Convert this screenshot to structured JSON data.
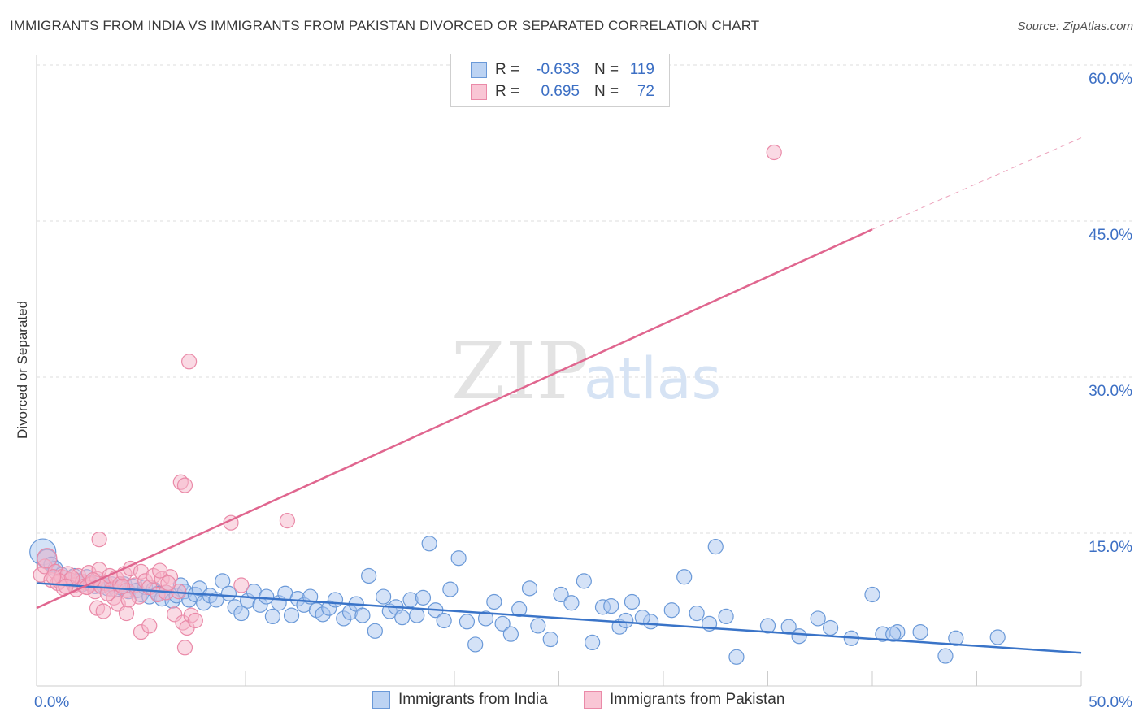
{
  "title": "IMMIGRANTS FROM INDIA VS IMMIGRANTS FROM PAKISTAN DIVORCED OR SEPARATED CORRELATION CHART",
  "source": "Source: ZipAtlas.com",
  "watermark": {
    "zip": "ZIP",
    "atlas": "atlas"
  },
  "legend": {
    "rows": [
      {
        "r_label": "R =",
        "r_value": "-0.633",
        "n_label": "N =",
        "n_value": "119"
      },
      {
        "r_label": "R =",
        "r_value": "0.695",
        "n_label": "N =",
        "n_value": "72"
      }
    ]
  },
  "colors": {
    "india_fill": "#a9c6ef",
    "india_stroke": "#6a99d8",
    "india_line": "#3a74c8",
    "pakistan_fill": "#f6b6c9",
    "pakistan_stroke": "#ea8aa8",
    "pakistan_line": "#e0668f",
    "tick_label": "#3c6fc4",
    "grid": "#dcdcdc"
  },
  "chart_data": {
    "type": "scatter",
    "title": "IMMIGRANTS FROM INDIA VS IMMIGRANTS FROM PAKISTAN DIVORCED OR SEPARATED CORRELATION CHART",
    "xlabel": "",
    "ylabel": "Divorced or Separated",
    "xlim": [
      0,
      50
    ],
    "ylim": [
      0,
      63
    ],
    "x_tick_labels": [
      "0.0%",
      "50.0%"
    ],
    "y_ticks": [
      15,
      30,
      45,
      60
    ],
    "y_tick_labels": [
      "15.0%",
      "30.0%",
      "45.0%",
      "60.0%"
    ],
    "grid": true,
    "legend_position": "top-center",
    "series": [
      {
        "name": "Immigrants from India",
        "r": -0.633,
        "n": 119,
        "trend": {
          "x": [
            0,
            50
          ],
          "y": [
            10.2,
            3.5
          ],
          "style": "solid"
        },
        "points": [
          [
            0.3,
            13.2
          ],
          [
            0.5,
            12.5
          ],
          [
            0.7,
            12.0
          ],
          [
            0.9,
            11.6
          ],
          [
            1.2,
            11.0
          ],
          [
            1.4,
            10.7
          ],
          [
            1.6,
            10.5
          ],
          [
            1.8,
            10.9
          ],
          [
            2.0,
            10.4
          ],
          [
            2.2,
            10.1
          ],
          [
            2.4,
            10.8
          ],
          [
            2.6,
            10.2
          ],
          [
            2.8,
            9.9
          ],
          [
            3.0,
            10.3
          ],
          [
            3.2,
            10.0
          ],
          [
            3.4,
            9.7
          ],
          [
            3.6,
            10.1
          ],
          [
            3.8,
            9.6
          ],
          [
            4.0,
            9.8
          ],
          [
            4.2,
            10.1
          ],
          [
            4.4,
            9.4
          ],
          [
            4.6,
            9.9
          ],
          [
            4.8,
            9.5
          ],
          [
            5.0,
            9.1
          ],
          [
            5.2,
            9.8
          ],
          [
            5.4,
            8.9
          ],
          [
            5.6,
            9.6
          ],
          [
            5.8,
            9.2
          ],
          [
            6.0,
            8.7
          ],
          [
            6.2,
            9.3
          ],
          [
            6.5,
            8.5
          ],
          [
            6.7,
            9.0
          ],
          [
            6.9,
            10.0
          ],
          [
            7.1,
            9.4
          ],
          [
            7.3,
            8.6
          ],
          [
            7.6,
            9.1
          ],
          [
            7.8,
            9.7
          ],
          [
            8.0,
            8.3
          ],
          [
            8.3,
            9.0
          ],
          [
            8.6,
            8.6
          ],
          [
            8.9,
            10.4
          ],
          [
            9.2,
            9.2
          ],
          [
            9.5,
            7.9
          ],
          [
            9.8,
            7.3
          ],
          [
            10.1,
            8.5
          ],
          [
            10.4,
            9.4
          ],
          [
            10.7,
            8.1
          ],
          [
            11.0,
            8.9
          ],
          [
            11.3,
            7.0
          ],
          [
            11.6,
            8.3
          ],
          [
            11.9,
            9.2
          ],
          [
            12.2,
            7.1
          ],
          [
            12.5,
            8.7
          ],
          [
            12.8,
            8.1
          ],
          [
            13.1,
            8.9
          ],
          [
            13.4,
            7.6
          ],
          [
            13.7,
            7.2
          ],
          [
            14.0,
            7.8
          ],
          [
            14.3,
            8.6
          ],
          [
            14.7,
            6.8
          ],
          [
            15.0,
            7.4
          ],
          [
            15.3,
            8.2
          ],
          [
            15.6,
            7.1
          ],
          [
            15.9,
            10.9
          ],
          [
            16.2,
            5.6
          ],
          [
            16.6,
            8.9
          ],
          [
            16.9,
            7.5
          ],
          [
            17.2,
            7.9
          ],
          [
            17.5,
            6.9
          ],
          [
            17.9,
            8.6
          ],
          [
            18.2,
            7.1
          ],
          [
            18.5,
            8.8
          ],
          [
            18.8,
            14.0
          ],
          [
            19.1,
            7.6
          ],
          [
            19.5,
            6.6
          ],
          [
            19.8,
            9.6
          ],
          [
            20.2,
            12.6
          ],
          [
            20.6,
            6.5
          ],
          [
            21.0,
            4.3
          ],
          [
            21.5,
            6.8
          ],
          [
            21.9,
            8.4
          ],
          [
            22.3,
            6.3
          ],
          [
            22.7,
            5.3
          ],
          [
            23.1,
            7.7
          ],
          [
            23.6,
            9.7
          ],
          [
            24.0,
            6.1
          ],
          [
            24.6,
            4.8
          ],
          [
            25.1,
            9.1
          ],
          [
            25.6,
            8.3
          ],
          [
            26.2,
            10.4
          ],
          [
            26.6,
            4.5
          ],
          [
            27.1,
            7.9
          ],
          [
            27.5,
            8.0
          ],
          [
            27.9,
            6.0
          ],
          [
            28.2,
            6.6
          ],
          [
            28.5,
            8.4
          ],
          [
            29.4,
            6.5
          ],
          [
            30.4,
            7.6
          ],
          [
            31.0,
            10.8
          ],
          [
            31.6,
            7.3
          ],
          [
            32.2,
            6.3
          ],
          [
            33.0,
            7.0
          ],
          [
            33.5,
            3.1
          ],
          [
            35.0,
            6.1
          ],
          [
            36.0,
            6.0
          ],
          [
            37.4,
            6.8
          ],
          [
            38.0,
            5.9
          ],
          [
            39.0,
            4.9
          ],
          [
            40.0,
            9.1
          ],
          [
            40.5,
            5.3
          ],
          [
            41.2,
            5.5
          ],
          [
            42.3,
            5.5
          ],
          [
            43.5,
            3.2
          ],
          [
            44.0,
            4.9
          ],
          [
            46.0,
            5.0
          ],
          [
            41.0,
            5.3
          ],
          [
            32.5,
            13.7
          ],
          [
            29.0,
            6.9
          ],
          [
            36.5,
            5.1
          ]
        ]
      },
      {
        "name": "Immigrants from Pakistan",
        "r": 0.695,
        "n": 72,
        "trend": {
          "x": [
            0,
            40
          ],
          "y": [
            7.8,
            44.2
          ],
          "style": "solid",
          "dashed_extension": {
            "x": [
              40,
              50
            ],
            "y": [
              44.2,
              53.0
            ]
          }
        },
        "points": [
          [
            0.2,
            11.0
          ],
          [
            0.4,
            11.8
          ],
          [
            0.5,
            12.6
          ],
          [
            0.7,
            10.5
          ],
          [
            0.9,
            11.3
          ],
          [
            1.0,
            10.2
          ],
          [
            1.2,
            10.8
          ],
          [
            1.3,
            9.7
          ],
          [
            1.5,
            11.1
          ],
          [
            1.6,
            10.5
          ],
          [
            1.8,
            10.0
          ],
          [
            1.9,
            9.6
          ],
          [
            2.0,
            10.9
          ],
          [
            2.2,
            10.3
          ],
          [
            2.3,
            9.9
          ],
          [
            2.5,
            11.2
          ],
          [
            2.6,
            10.1
          ],
          [
            2.8,
            9.4
          ],
          [
            2.9,
            10.6
          ],
          [
            3.0,
            11.5
          ],
          [
            3.1,
            9.9
          ],
          [
            3.3,
            10.2
          ],
          [
            3.5,
            10.9
          ],
          [
            3.6,
            9.6
          ],
          [
            3.7,
            8.8
          ],
          [
            3.8,
            10.7
          ],
          [
            3.9,
            8.2
          ],
          [
            4.0,
            10.1
          ],
          [
            4.2,
            11.1
          ],
          [
            4.3,
            9.5
          ],
          [
            4.5,
            11.6
          ],
          [
            4.7,
            10.0
          ],
          [
            4.9,
            8.9
          ],
          [
            5.0,
            11.3
          ],
          [
            5.2,
            10.4
          ],
          [
            5.4,
            9.8
          ],
          [
            5.6,
            10.9
          ],
          [
            5.8,
            9.1
          ],
          [
            6.0,
            10.6
          ],
          [
            6.2,
            9.3
          ],
          [
            6.4,
            10.8
          ],
          [
            6.6,
            7.2
          ],
          [
            6.8,
            9.4
          ],
          [
            7.0,
            6.4
          ],
          [
            7.2,
            5.9
          ],
          [
            7.4,
            7.1
          ],
          [
            7.6,
            6.6
          ],
          [
            7.1,
            4.0
          ],
          [
            6.9,
            19.9
          ],
          [
            7.1,
            19.6
          ],
          [
            7.3,
            31.5
          ],
          [
            9.3,
            16.0
          ],
          [
            12.0,
            16.2
          ],
          [
            9.8,
            10.0
          ],
          [
            3.0,
            14.4
          ],
          [
            4.3,
            7.3
          ],
          [
            2.9,
            7.8
          ],
          [
            5.0,
            5.5
          ],
          [
            5.4,
            6.1
          ],
          [
            3.2,
            7.5
          ],
          [
            4.4,
            8.6
          ],
          [
            35.3,
            51.6
          ],
          [
            1.1,
            10.4
          ],
          [
            2.4,
            9.8
          ],
          [
            1.7,
            10.7
          ],
          [
            3.4,
            9.2
          ],
          [
            5.9,
            11.4
          ],
          [
            4.1,
            9.9
          ],
          [
            2.7,
            10.5
          ],
          [
            1.4,
            9.9
          ],
          [
            6.3,
            10.2
          ],
          [
            0.8,
            10.8
          ]
        ]
      }
    ]
  }
}
